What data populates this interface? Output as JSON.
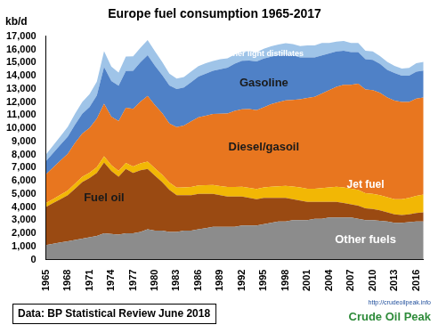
{
  "chart_data": {
    "type": "area",
    "title": "Europe fuel consumption 1965-2017",
    "ylabel": "kb/d",
    "stacked": true,
    "grid": false,
    "annotations": [
      "Data: BP Statistical Review June 2018",
      "http://crudeoilpeak.info",
      "Crude Oil Peak"
    ],
    "categories": [
      "1965",
      null,
      null,
      "1968",
      null,
      null,
      "1971",
      null,
      null,
      "1974",
      null,
      null,
      "1977",
      null,
      null,
      "1980",
      null,
      null,
      "1983",
      null,
      null,
      "1986",
      null,
      null,
      "1989",
      null,
      null,
      "1992",
      null,
      null,
      "1995",
      null,
      null,
      "1998",
      null,
      null,
      "2001",
      null,
      null,
      "2004",
      null,
      null,
      "2007",
      null,
      null,
      "2010",
      null,
      null,
      "2013",
      null,
      null,
      "2016",
      null
    ],
    "ylim": [
      0,
      17000
    ],
    "yticks": [
      0,
      {
        "value": 1000,
        "label": "1,000"
      },
      {
        "value": 2000,
        "label": "2,000"
      },
      {
        "value": 3000,
        "label": "3,000"
      },
      {
        "value": 4000,
        "label": "4,000"
      },
      {
        "value": 5000,
        "label": "5,000"
      },
      {
        "value": 6000,
        "label": "6,000"
      },
      {
        "value": 7000,
        "label": "7,000"
      },
      {
        "value": 8000,
        "label": "8,000"
      },
      {
        "value": 9000,
        "label": "9,000"
      },
      {
        "value": 10000,
        "label": "10,000"
      },
      {
        "value": 11000,
        "label": "11,000"
      },
      {
        "value": 12000,
        "label": "12,000"
      },
      {
        "value": 13000,
        "label": "13,000"
      },
      {
        "value": 14000,
        "label": "14,000"
      },
      {
        "value": 15000,
        "label": "15,000"
      },
      {
        "value": 16000,
        "label": "16,000"
      },
      {
        "value": 17000,
        "label": "17,000"
      }
    ],
    "series": [
      {
        "name": "Other fuels",
        "color": "#8c8c8c",
        "values": [
          1100,
          1200,
          1300,
          1400,
          1500,
          1600,
          1700,
          1800,
          2000,
          1950,
          1900,
          2000,
          2000,
          2100,
          2300,
          2200,
          2200,
          2100,
          2100,
          2200,
          2200,
          2300,
          2400,
          2500,
          2500,
          2500,
          2500,
          2600,
          2600,
          2600,
          2700,
          2800,
          2900,
          2900,
          3000,
          3000,
          3000,
          3100,
          3100,
          3200,
          3200,
          3200,
          3200,
          3100,
          3000,
          3000,
          2950,
          2900,
          2800,
          2800,
          2850,
          2900,
          2900
        ]
      },
      {
        "name": "Fuel oil",
        "color": "#9a4a12",
        "values": [
          2900,
          3100,
          3300,
          3500,
          3900,
          4300,
          4500,
          4800,
          5400,
          4800,
          4400,
          4900,
          4600,
          4700,
          4600,
          4200,
          3700,
          3200,
          2800,
          2700,
          2700,
          2700,
          2600,
          2500,
          2400,
          2300,
          2300,
          2200,
          2100,
          2000,
          2000,
          1900,
          1800,
          1800,
          1600,
          1500,
          1400,
          1300,
          1300,
          1200,
          1200,
          1100,
          1000,
          1000,
          900,
          850,
          800,
          700,
          650,
          600,
          600,
          650,
          700
        ]
      },
      {
        "name": "Jet fuel",
        "color": "#f2b705",
        "values": [
          300,
          320,
          340,
          360,
          380,
          400,
          420,
          440,
          460,
          440,
          440,
          460,
          480,
          520,
          560,
          560,
          560,
          560,
          580,
          600,
          620,
          640,
          660,
          680,
          700,
          720,
          720,
          740,
          760,
          780,
          800,
          840,
          880,
          920,
          960,
          1000,
          1000,
          1000,
          1050,
          1100,
          1150,
          1200,
          1200,
          1200,
          1150,
          1150,
          1150,
          1150,
          1150,
          1200,
          1250,
          1300,
          1350
        ]
      },
      {
        "name": "Diesel/gasoil",
        "color": "#e8761f",
        "values": [
          2200,
          2400,
          2600,
          2800,
          3100,
          3300,
          3400,
          3700,
          4000,
          3700,
          3800,
          4200,
          4400,
          4700,
          5000,
          4800,
          4700,
          4500,
          4600,
          4700,
          5000,
          5200,
          5300,
          5400,
          5500,
          5600,
          5800,
          5900,
          6000,
          6000,
          6100,
          6300,
          6400,
          6500,
          6600,
          6700,
          6900,
          7000,
          7200,
          7400,
          7600,
          7800,
          7900,
          8100,
          7900,
          7900,
          7800,
          7600,
          7500,
          7400,
          7300,
          7400,
          7400
        ]
      },
      {
        "name": "Gasoline",
        "color": "#4f81c7",
        "values": [
          1000,
          1100,
          1200,
          1300,
          1400,
          1500,
          1600,
          1750,
          2800,
          2700,
          2700,
          2800,
          2900,
          3000,
          3100,
          3000,
          2900,
          2900,
          2900,
          2900,
          3000,
          3100,
          3200,
          3300,
          3400,
          3500,
          3600,
          3700,
          3700,
          3700,
          3700,
          3600,
          3600,
          3500,
          3400,
          3200,
          3100,
          3000,
          2900,
          2800,
          2700,
          2600,
          2500,
          2400,
          2300,
          2300,
          2200,
          2100,
          2100,
          2000,
          2000,
          2050,
          2050
        ]
      },
      {
        "name": "Other light distillates",
        "color": "#9fc4e8",
        "values": [
          500,
          580,
          660,
          740,
          820,
          900,
          980,
          1050,
          1200,
          1100,
          1000,
          1100,
          1100,
          1100,
          1150,
          1100,
          1000,
          900,
          800,
          800,
          800,
          800,
          800,
          750,
          750,
          700,
          700,
          700,
          700,
          700,
          750,
          800,
          800,
          850,
          850,
          850,
          900,
          900,
          950,
          800,
          750,
          750,
          700,
          700,
          650,
          650,
          600,
          600,
          550,
          550,
          600,
          650,
          650
        ]
      }
    ]
  }
}
